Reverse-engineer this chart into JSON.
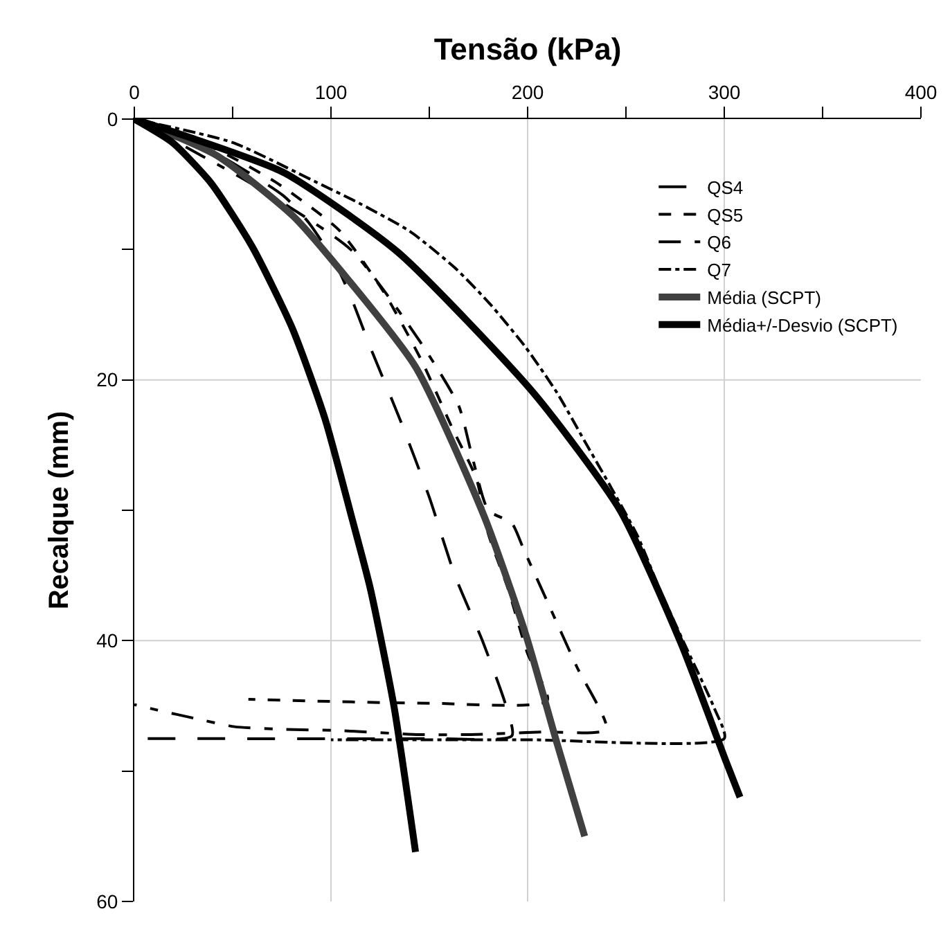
{
  "chart_data": {
    "type": "line",
    "xlabel": "Tensão (kPa)",
    "ylabel": "Recalque (mm)",
    "xlim": [
      0,
      400
    ],
    "ylim": [
      60,
      0
    ],
    "xticks": [
      0,
      {
        "value": 50,
        "label": null
      },
      100,
      {
        "value": 150,
        "label": null
      },
      200,
      {
        "value": 250,
        "label": null
      },
      300,
      {
        "value": 350,
        "label": null
      },
      400
    ],
    "yticks": [
      0,
      {
        "value": 10,
        "label": null
      },
      20,
      {
        "value": 30,
        "label": null
      },
      40,
      {
        "value": 50,
        "label": null
      },
      60
    ],
    "grid": true,
    "legend": "top right",
    "marker": "none",
    "series": [
      {
        "name": "QS4",
        "color": "#000000",
        "line_style": "longdash",
        "x": [
          0,
          40,
          76,
          89,
          102,
          110,
          120,
          135,
          150,
          163,
          177,
          189,
          192,
          150,
          0
        ],
        "values": [
          0,
          2.5,
          5.9,
          8,
          11,
          13.6,
          17.5,
          23,
          29,
          35,
          40,
          45,
          47.3,
          47.5,
          47.5
        ]
      },
      {
        "name": "QS5",
        "color": "#000000",
        "line_style": "dashed",
        "x": [
          0,
          40,
          71.5,
          104,
          127,
          146,
          162,
          174,
          180,
          190,
          200,
          210,
          150,
          58
        ],
        "values": [
          0,
          2.2,
          4.8,
          8.5,
          13.3,
          18.5,
          23.8,
          27.6,
          31.8,
          36,
          41,
          44.6,
          44.8,
          44.5
        ]
      },
      {
        "name": "Q6",
        "color": "#000000",
        "line_style": "longdashdot",
        "x": [
          0,
          60,
          110,
          145,
          165,
          172,
          180,
          192,
          198,
          210,
          225,
          240,
          207,
          171,
          145,
          105,
          77,
          51,
          32,
          11,
          0
        ],
        "values": [
          0,
          5,
          10,
          17,
          22,
          26,
          30,
          31,
          33,
          37,
          42,
          46.8,
          47,
          47.2,
          47.2,
          46.9,
          46.8,
          46.6,
          46,
          45.3,
          44.9
        ]
      },
      {
        "name": "Q7",
        "color": "#000000",
        "line_style": "dashdot",
        "x": [
          0,
          50,
          92,
          115,
          140,
          163,
          181,
          199,
          215,
          229,
          243,
          256,
          267,
          279,
          295,
          300,
          200,
          100
        ],
        "values": [
          0,
          1.8,
          4.8,
          6.5,
          8.6,
          11.4,
          14.2,
          17.5,
          21,
          24.7,
          28.4,
          32,
          36,
          40,
          45.2,
          47.5,
          47.6,
          47.6
        ]
      },
      {
        "name": "Média (SCPT)",
        "color": "#404040",
        "line_style": "solid",
        "x": [
          0,
          42,
          80.5,
          101,
          143,
          178,
          199,
          215,
          229
        ],
        "values": [
          0,
          2.8,
          7.4,
          10.9,
          19,
          30.5,
          39.5,
          47.9,
          55
        ]
      },
      {
        "name": "Média+/-Desvio (SCPT)",
        "color": "#000000",
        "line_style": "solid",
        "x": [
          0,
          19.4,
          39,
          60,
          80.5,
          97,
          111,
          120,
          132,
          143
        ],
        "values": [
          0,
          1.8,
          4.9,
          9.8,
          16.1,
          23,
          30.8,
          36,
          45,
          56.2
        ]
      },
      {
        "color": "#000000",
        "line_style": "solid",
        "x": [
          0,
          30,
          76,
          134,
          203,
          247,
          278,
          301,
          308
        ],
        "values": [
          0,
          1.5,
          4.1,
          10.2,
          21,
          30,
          40.2,
          49.3,
          52
        ]
      }
    ]
  }
}
